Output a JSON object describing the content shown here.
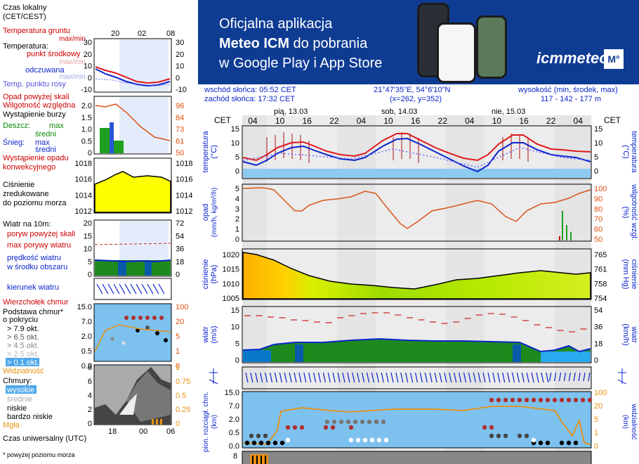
{
  "left_panel": {
    "timezone": "Czas lokalny\n(CET/CEST)",
    "top_hours": [
      "20",
      "02",
      "08"
    ],
    "temp_labels": {
      "ground": "Temperatura gruntu",
      "ground_maxmin": "max/min",
      "temperature": "Temperatura:",
      "midpoint": "punkt środkowy",
      "maxmin": "max/min",
      "feels": "odczuwana",
      "feels_maxmin": "max/min",
      "dew": "Temp. punktu rosy"
    },
    "temp_ticks": [
      "30",
      "20",
      "10",
      "0",
      "-10"
    ],
    "precip_labels": {
      "over_scale": "Opad powyżej skali",
      "humidity": "Wilgotność względna",
      "storm": "Wystąpienie burzy",
      "rain": "Deszcz:",
      "rain_max": "max",
      "rain_avg": "średni",
      "snow": "Śnieg:",
      "snow_max": "max",
      "snow_avg": "średni",
      "conv": "Wystąpienie opadu",
      "conv2": "konwekcyjnego"
    },
    "precip_ticks": [
      "2.0",
      "1.5",
      "1.0",
      "0.5",
      "0"
    ],
    "hum_ticks": [
      "96",
      "84",
      "73",
      "61",
      "50"
    ],
    "pressure_labels": [
      "Ciśnienie",
      "zredukowane",
      "do poziomu morza"
    ],
    "pressure_ticks": [
      "1018",
      "1016",
      "1014",
      "1012"
    ],
    "wind_labels": {
      "title": "Wiatr na 10m:",
      "gust_over": "poryw powyżej skali",
      "gust_max": "max porywy wiatru",
      "speed": "prędkość wiatru",
      "area": "w środku obszaru"
    },
    "wind_ticks": [
      "20",
      "15",
      "10",
      "5",
      "0"
    ],
    "wind_kmh_ticks": [
      "72",
      "54",
      "36",
      "18",
      "0"
    ],
    "direction": "kierunek wiatru",
    "cloud_top": "Wierzchołek chmur",
    "cloud_base": [
      "Podstawa chmur*",
      "o pokryciu"
    ],
    "oktas": [
      "> 7.9 okt.",
      "> 6.5 okt.",
      "> 4.5 okt.",
      "> 2.5 okt.",
      "> 0.1 okt."
    ],
    "cloudbase_ticks": [
      "15.0",
      "7.0",
      "2.0",
      "0.5",
      "0.0"
    ],
    "cloudtop_ticks": [
      "100",
      "20",
      "5",
      "1",
      "0"
    ],
    "visibility": "Widzialność",
    "clouds_title": "Chmury:",
    "cloud_levels": [
      "wysokie",
      "średnie",
      "niskie",
      "bardzo niskie"
    ],
    "fog": "Mgła",
    "cloud_ticks": [
      "8",
      "6",
      "4",
      "2",
      "0"
    ],
    "cloud_right_ticks": [
      "1",
      "0.75",
      "0.5",
      "0.25",
      "0"
    ],
    "utc": "Czas uniwersalny (UTC)",
    "utc_hours": [
      "18",
      "00",
      "06"
    ],
    "footnote": "* powyżej poziomu morza"
  },
  "banner": {
    "line1": "Oficjalna aplikacja",
    "line2_bold": "Meteo ICM",
    "line2_rest": " do pobrania",
    "line3": "w Google Play i App Store",
    "logo": "icmmeteo",
    "logo_badge": "M°"
  },
  "info": {
    "sunrise": "wschód słońca: 05:52 CET",
    "sunset": "zachód słońca: 17:32 CET",
    "coords": "21°47'35\"E, 54°6'10\"N",
    "grid": "(x=262,  y=352)",
    "height_label": "wysokość (min, środek, max)",
    "height_values": "117 - 142 - 177 m"
  },
  "main": {
    "cet": "CET",
    "days": [
      "pią, 13.03",
      "sob, 14.03",
      "nie, 15.03"
    ],
    "hours": [
      "04",
      "10",
      "16",
      "22",
      "04",
      "10",
      "16",
      "22",
      "04",
      "10",
      "16",
      "22",
      "04"
    ],
    "temp_ticks": [
      "15",
      "10",
      "5",
      "0"
    ],
    "temp_label": "temperatura",
    "temp_unit": "(°C)",
    "precip_ticks": [
      "5",
      "4",
      "3",
      "2",
      "1",
      "0"
    ],
    "precip_label": "opad",
    "precip_unit": "(mm/h, kg/m²/h)",
    "hum_ticks": [
      "100",
      "90",
      "80",
      "70",
      "60",
      "50"
    ],
    "hum_label": "wilgotność wzgl.",
    "hum_unit": "(%)",
    "press_ticks": [
      "1020",
      "1015",
      "1010",
      "1005"
    ],
    "press_label": "ciśnienie",
    "press_unit": "(hPa)",
    "press_mm_ticks": [
      "765",
      "761",
      "758",
      "754"
    ],
    "press_mm_unit": "(mm Hg)",
    "wind_ticks": [
      "15",
      "10",
      "5",
      "0"
    ],
    "wind_label": "wiatr",
    "wind_unit": "(m/s)",
    "wind_kmh_ticks": [
      "54",
      "36",
      "18",
      "0"
    ],
    "wind_kmh_unit": "(km/h)",
    "cloud_ticks": [
      "15.0",
      "7.0",
      "2.0",
      "0.5",
      "0.0"
    ],
    "cloud_label": "pion. rozciągł. chm.",
    "cloud_unit": "(km)",
    "vis_ticks": [
      "100",
      "20",
      "5",
      "1",
      "0"
    ],
    "vis_label": "widzialność",
    "vis_unit": "(km)",
    "bottom_tick": "8"
  },
  "colors": {
    "temp": "#e0191b",
    "dew": "#0b24cc",
    "humidity": "#d9541b",
    "pressure_fill": "#c8e800",
    "wind_fill": "#1e8a1e",
    "banner": "#0f3c93"
  }
}
